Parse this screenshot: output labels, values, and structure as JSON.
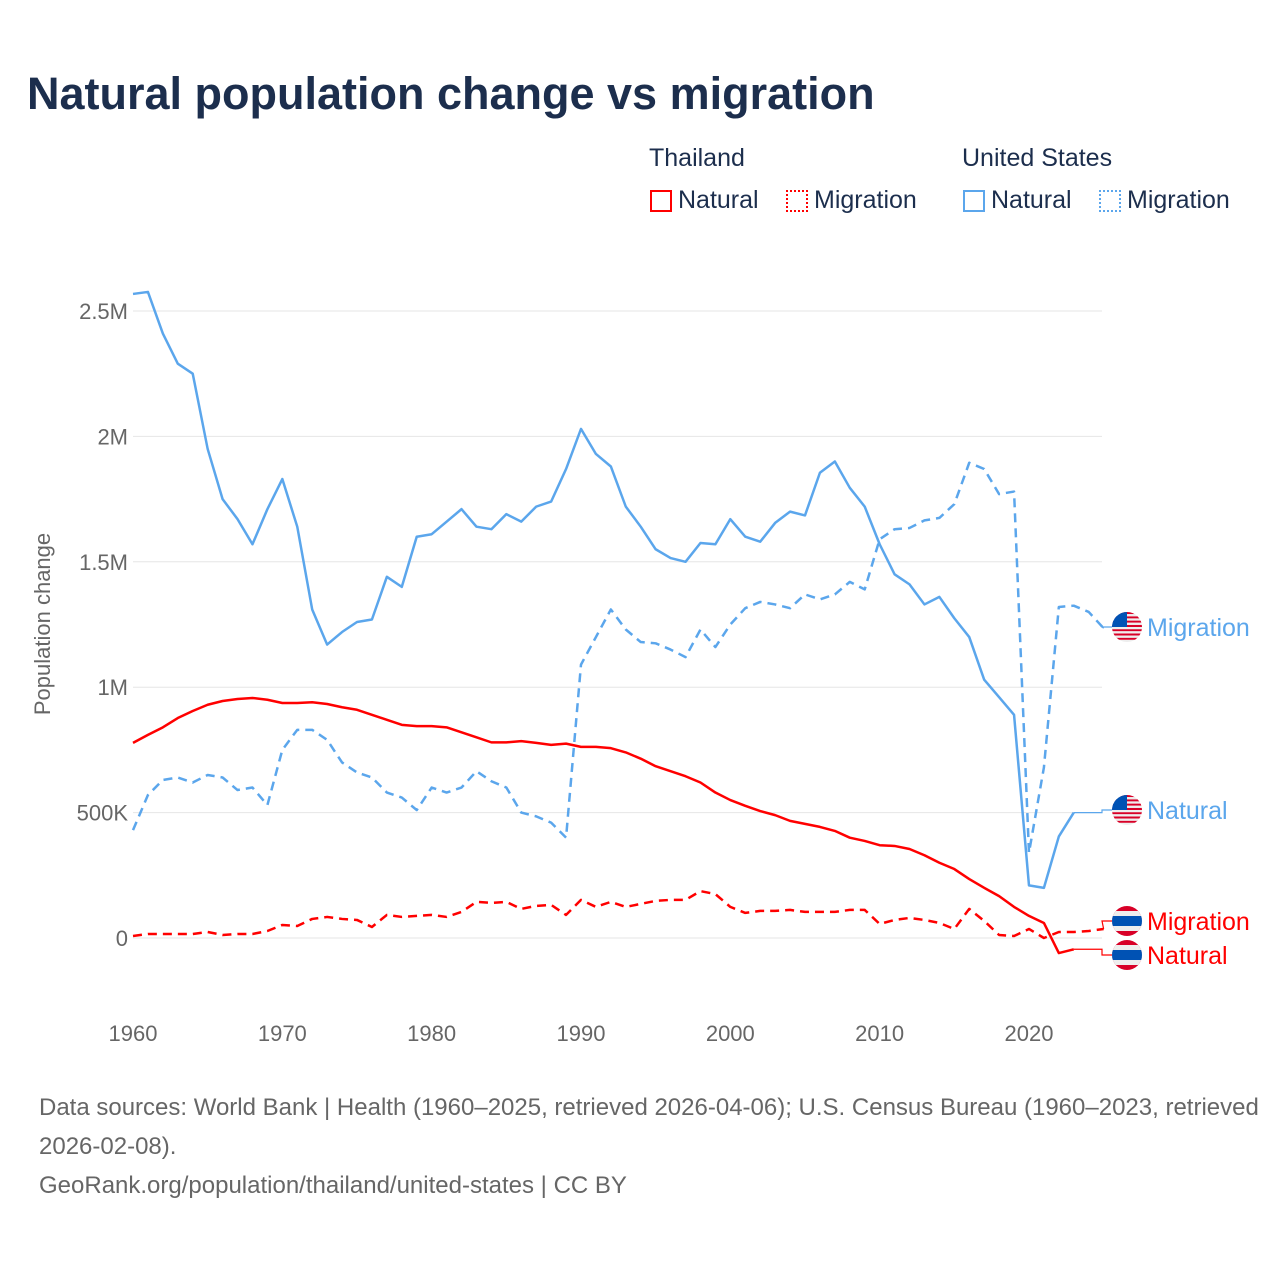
{
  "title": "Natural population change vs migration",
  "legend": {
    "groups": [
      {
        "name": "Thailand",
        "items": [
          "Natural",
          "Migration"
        ]
      },
      {
        "name": "United States",
        "items": [
          "Natural",
          "Migration"
        ]
      }
    ]
  },
  "colors": {
    "thailand": "#ff0000",
    "united_states": "#5ba6ec"
  },
  "footer": {
    "line1": "Data sources: World Bank | Health (1960–2025, retrieved 2026-04-06); U.S. Census Bureau (1960–2023, retrieved 2026-02-08).",
    "line2": "GeoRank.org/population/thailand/united-states | CC BY"
  },
  "chart_data": {
    "type": "line",
    "title": "Natural population change vs migration",
    "xlabel": "",
    "ylabel": "Population change",
    "xlim": [
      1960,
      2025
    ],
    "ylim": [
      -200000,
      2700000
    ],
    "xticks": [
      "1960",
      "1970",
      "1980",
      "1990",
      "2000",
      "2010",
      "2020"
    ],
    "yticks": [
      {
        "v": 0,
        "label": "0"
      },
      {
        "v": 500000,
        "label": "500K"
      },
      {
        "v": 1000000,
        "label": "1M"
      },
      {
        "v": 1500000,
        "label": "1.5M"
      },
      {
        "v": 2000000,
        "label": "2M"
      },
      {
        "v": 2500000,
        "label": "2.5M"
      }
    ],
    "series": [
      {
        "name": "United States Natural",
        "label": "Natural",
        "country": "us",
        "color": "#5ba6ec",
        "dash": false,
        "start": 1960,
        "values": [
          2.568,
          2.576,
          2.41,
          2.29,
          2.25,
          1.95,
          1.75,
          1.67,
          1.57,
          1.71,
          1.83,
          1.64,
          1.31,
          1.17,
          1.22,
          1.26,
          1.27,
          1.44,
          1.4,
          1.6,
          1.61,
          1.66,
          1.71,
          1.64,
          1.63,
          1.69,
          1.66,
          1.72,
          1.74,
          1.87,
          2.03,
          1.93,
          1.88,
          1.72,
          1.64,
          1.55,
          1.515,
          1.5,
          1.575,
          1.57,
          1.67,
          1.6,
          1.58,
          1.655,
          1.7,
          1.685,
          1.855,
          1.9,
          1.795,
          1.72,
          1.57,
          1.45,
          1.41,
          1.33,
          1.36,
          1.275,
          1.2,
          1.03,
          0.96,
          0.89,
          0.21,
          0.2,
          0.405,
          0.5
        ]
      },
      {
        "name": "United States Migration",
        "label": "Migration",
        "country": "us",
        "color": "#5ba6ec",
        "dash": true,
        "start": 1960,
        "values": [
          0.43,
          0.57,
          0.63,
          0.64,
          0.62,
          0.65,
          0.64,
          0.59,
          0.6,
          0.53,
          0.75,
          0.83,
          0.83,
          0.79,
          0.7,
          0.66,
          0.64,
          0.58,
          0.56,
          0.51,
          0.6,
          0.58,
          0.6,
          0.665,
          0.625,
          0.6,
          0.5,
          0.485,
          0.46,
          0.4,
          1.09,
          1.2,
          1.31,
          1.23,
          1.18,
          1.175,
          1.15,
          1.12,
          1.23,
          1.16,
          1.25,
          1.315,
          1.34,
          1.33,
          1.315,
          1.37,
          1.35,
          1.37,
          1.42,
          1.39,
          1.59,
          1.63,
          1.635,
          1.665,
          1.675,
          1.73,
          1.895,
          1.87,
          1.77,
          1.78,
          0.34,
          0.68,
          1.32,
          1.325,
          1.3,
          1.235
        ]
      },
      {
        "name": "Thailand Natural",
        "label": "Natural",
        "country": "th",
        "color": "#ff0000",
        "dash": false,
        "start": 1960,
        "values": [
          0.778,
          0.81,
          0.84,
          0.877,
          0.905,
          0.93,
          0.945,
          0.953,
          0.957,
          0.95,
          0.937,
          0.937,
          0.94,
          0.933,
          0.92,
          0.91,
          0.89,
          0.87,
          0.85,
          0.845,
          0.845,
          0.84,
          0.82,
          0.8,
          0.78,
          0.78,
          0.785,
          0.778,
          0.77,
          0.775,
          0.762,
          0.762,
          0.757,
          0.74,
          0.715,
          0.685,
          0.665,
          0.645,
          0.62,
          0.58,
          0.55,
          0.527,
          0.506,
          0.49,
          0.467,
          0.455,
          0.443,
          0.427,
          0.4,
          0.387,
          0.37,
          0.367,
          0.355,
          0.33,
          0.3,
          0.275,
          0.235,
          0.2,
          0.167,
          0.124,
          0.088,
          0.06,
          -0.06,
          -0.045
        ]
      },
      {
        "name": "Thailand Migration",
        "label": "Migration",
        "country": "th",
        "color": "#ff0000",
        "dash": true,
        "start": 1960,
        "values": [
          0.008,
          0.016,
          0.016,
          0.016,
          0.016,
          0.024,
          0.012,
          0.016,
          0.016,
          0.028,
          0.052,
          0.048,
          0.076,
          0.084,
          0.076,
          0.072,
          0.044,
          0.092,
          0.084,
          0.088,
          0.092,
          0.084,
          0.104,
          0.144,
          0.14,
          0.144,
          0.116,
          0.128,
          0.132,
          0.092,
          0.152,
          0.124,
          0.144,
          0.124,
          0.136,
          0.148,
          0.152,
          0.152,
          0.187,
          0.175,
          0.124,
          0.1,
          0.108,
          0.108,
          0.112,
          0.104,
          0.104,
          0.104,
          0.112,
          0.112,
          0.056,
          0.072,
          0.08,
          0.072,
          0.06,
          0.036,
          0.116,
          0.068,
          0.012,
          0.008,
          0.036,
          0,
          0.024,
          0.024,
          0.028,
          0.036
        ]
      }
    ],
    "values_unit": "millions"
  }
}
